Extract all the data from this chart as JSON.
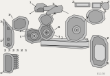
{
  "bg_color": "#f2f0ec",
  "lw": 0.35,
  "dc": "#444444",
  "tc": "#111111",
  "gc": "#999999",
  "part_gray": "#c8c8c8",
  "part_dark": "#888888",
  "part_light": "#e0e0e0"
}
